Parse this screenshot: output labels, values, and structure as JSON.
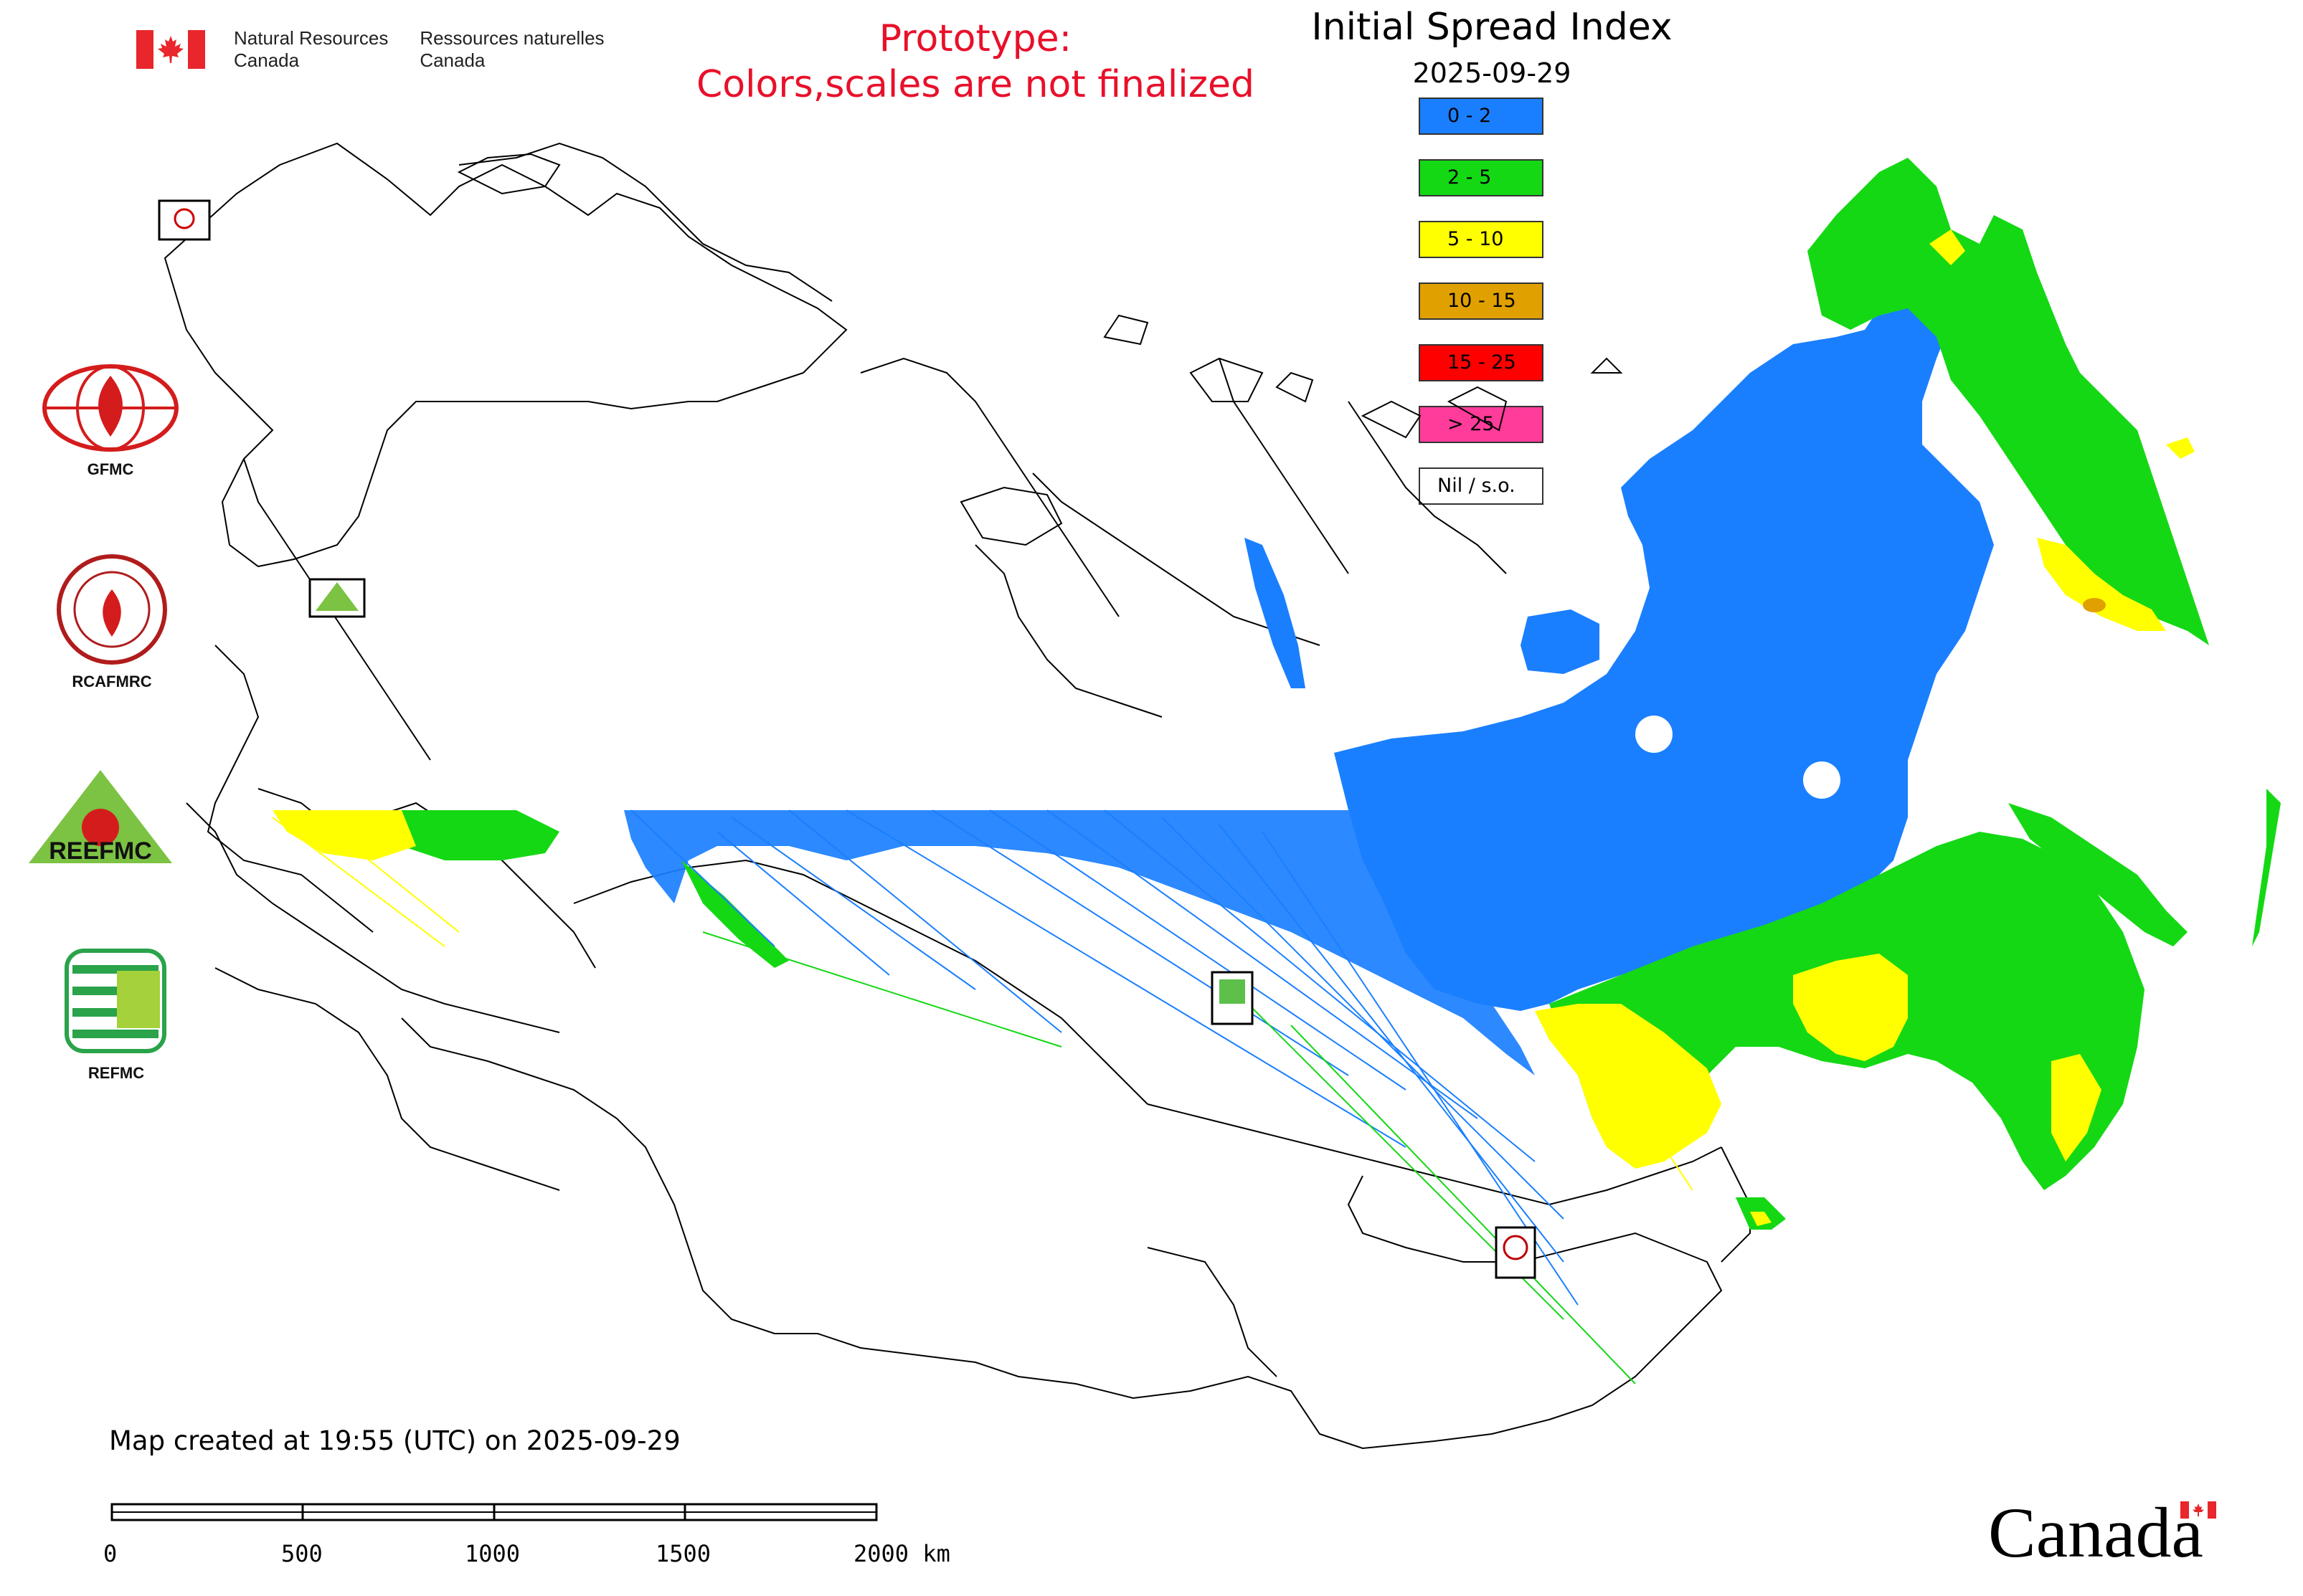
{
  "header": {
    "dept_en": [
      "Natural Resources",
      "Canada"
    ],
    "dept_fr": [
      "Ressources naturelles",
      "Canada"
    ],
    "prototype_lines": [
      "Prototype:",
      "Colors,scales are not finalized"
    ]
  },
  "map_title": "Initial Spread Index",
  "map_date": "2025-09-29",
  "legend": [
    {
      "label": "0 - 2",
      "color": "#1a7fff"
    },
    {
      "label": "2 - 5",
      "color": "#14d814"
    },
    {
      "label": "5 - 10",
      "color": "#ffff00"
    },
    {
      "label": "10 - 15",
      "color": "#e0a000"
    },
    {
      "label": "15 - 25",
      "color": "#ff0000"
    },
    {
      "label": "> 25",
      "color": "#ff3c9a"
    },
    {
      "label": "Nil / s.o.",
      "color": "#ffffff"
    }
  ],
  "logos": [
    {
      "label": "GFMC"
    },
    {
      "label": "RCAFMRC"
    },
    {
      "label": "REEFMC",
      "emblem_text": "REEFMC"
    },
    {
      "label": "REFMC"
    }
  ],
  "footer": {
    "created_text": "Map created at 19:55 (UTC) on 2025-09-29",
    "scale_labels": [
      "0",
      "500",
      "1000",
      "1500",
      "2000 km"
    ],
    "wordmark": "Canada"
  }
}
